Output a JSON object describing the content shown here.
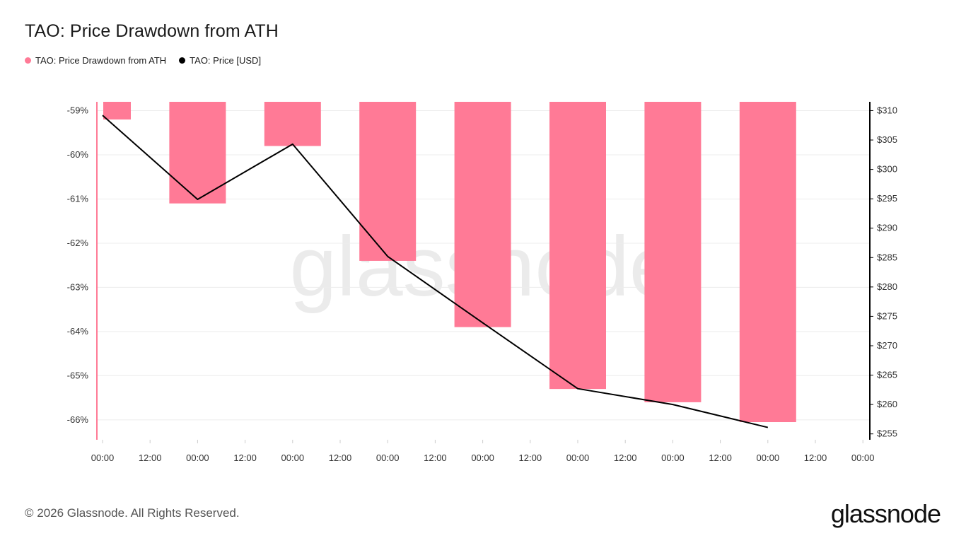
{
  "header": {
    "title": "TAO: Price Drawdown from ATH"
  },
  "legend": {
    "items": [
      {
        "label": "TAO: Price Drawdown from ATH",
        "color": "#ff7a96"
      },
      {
        "label": "TAO: Price [USD]",
        "color": "#000000"
      }
    ]
  },
  "footer": {
    "copyright": "© 2026 Glassnode. All Rights Reserved.",
    "logo": "glassnode"
  },
  "watermark": "glassnode",
  "chart_data": {
    "type": "bar",
    "x_tick_labels": [
      "00:00",
      "12:00",
      "00:00",
      "12:00",
      "00:00",
      "12:00",
      "00:00",
      "12:00",
      "00:00",
      "12:00",
      "00:00",
      "12:00",
      "00:00",
      "12:00",
      "00:00",
      "12:00",
      "00:00"
    ],
    "bar_color": "#ff7a96",
    "line_color": "#000000",
    "left_axis": {
      "ticks": [
        -59,
        -60,
        -61,
        -62,
        -63,
        -64,
        -65,
        -66
      ],
      "tick_labels": [
        "-59%",
        "-60%",
        "-61%",
        "-62%",
        "-63%",
        "-64%",
        "-65%",
        "-66%"
      ],
      "range": [
        -66.45,
        -58.8
      ]
    },
    "right_axis": {
      "ticks": [
        310,
        305,
        300,
        295,
        290,
        285,
        280,
        275,
        270,
        265,
        260,
        255
      ],
      "tick_labels": [
        "$310",
        "$305",
        "$300",
        "$295",
        "$290",
        "$285",
        "$280",
        "$275",
        "$270",
        "$265",
        "$260",
        "$255"
      ],
      "range": [
        254.0,
        311.5
      ]
    },
    "series": [
      {
        "name": "TAO: Price Drawdown from ATH",
        "kind": "bar",
        "axis": "left",
        "values": [
          -59.2,
          -61.1,
          -59.8,
          -62.4,
          -63.9,
          -65.3,
          -65.6,
          -66.05
        ]
      },
      {
        "name": "TAO: Price [USD]",
        "kind": "line",
        "axis": "right",
        "values": [
          309.2,
          294.9,
          304.3,
          285.2,
          273.9,
          262.7,
          260.0,
          256.1
        ]
      }
    ]
  }
}
